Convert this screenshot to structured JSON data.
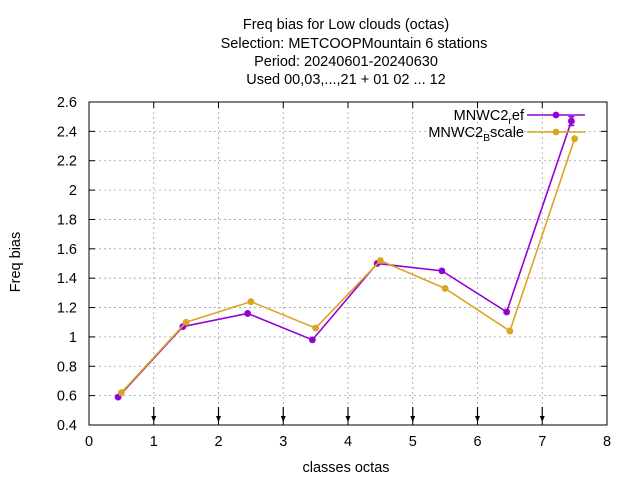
{
  "chart_data": {
    "type": "line",
    "title_lines": [
      "Freq bias  for Low clouds (octas)",
      "Selection: METCOOPMountain      6 stations",
      "Period: 20240601-20240630",
      "Used 00,03,...,21 + 01 02 ... 12"
    ],
    "xlabel": "classes octas",
    "ylabel": "Freq bias",
    "xlim": [
      0,
      8
    ],
    "ylim": [
      0.4,
      2.6
    ],
    "xticks": [
      "0",
      "1",
      "2",
      "3",
      "4",
      "5",
      "6",
      "7",
      "8"
    ],
    "yticks": [
      "0.4",
      "0.6",
      "0.8",
      "1",
      "1.2",
      "1.4",
      "1.6",
      "1.8",
      "2",
      "2.2",
      "2.4",
      "2.6"
    ],
    "grid": true,
    "legend_position": "top-right",
    "series": [
      {
        "name_parts": [
          "MNWC2",
          "r",
          "ef"
        ],
        "color": "#9400d3",
        "x": [
          0.45,
          1.45,
          2.45,
          3.45,
          4.45,
          5.45,
          6.45,
          7.45
        ],
        "y": [
          0.59,
          1.07,
          1.16,
          0.98,
          1.5,
          1.45,
          1.17,
          2.47
        ],
        "errors": [
          0,
          0,
          0,
          0,
          0,
          0,
          0,
          0.03
        ]
      },
      {
        "name_parts": [
          "MNWC2",
          "B",
          "scale"
        ],
        "color": "#daa520",
        "x": [
          0.5,
          1.5,
          2.5,
          3.5,
          4.5,
          5.5,
          6.5,
          7.5
        ],
        "y": [
          0.62,
          1.1,
          1.24,
          1.06,
          1.52,
          1.33,
          1.04,
          2.35
        ],
        "errors": [
          0,
          0,
          0,
          0,
          0,
          0,
          0,
          0
        ]
      }
    ],
    "bottom_markers_x": [
      1,
      2,
      3,
      4,
      5,
      6,
      7
    ]
  }
}
